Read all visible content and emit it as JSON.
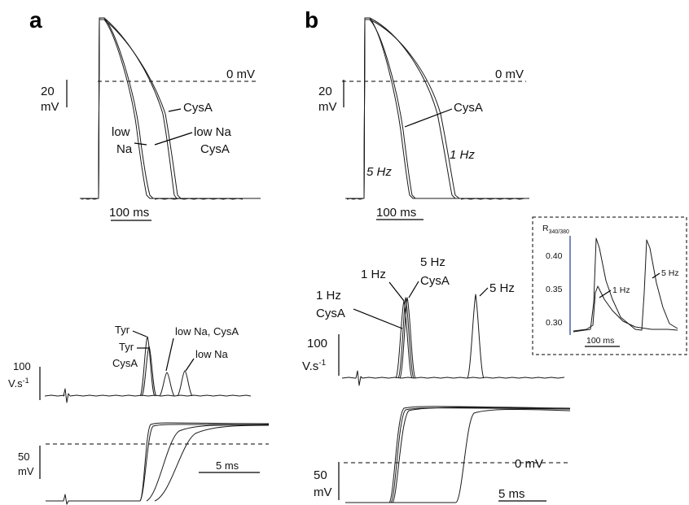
{
  "panels": {
    "a": "a",
    "b": "b"
  },
  "panel_a_ap": {
    "zero_label": "0 mV",
    "scale_v": [
      "20",
      "mV"
    ],
    "scale_t": "100 ms",
    "labels": {
      "cysa": "CysA",
      "low_na_1": "low",
      "low_na_2": "Na",
      "low_na_cysa_1": "low Na",
      "low_na_cysa_2": "CysA"
    }
  },
  "panel_b_ap": {
    "zero_label": "0 mV",
    "scale_v": [
      "20",
      "mV"
    ],
    "scale_t": "100 ms",
    "labels": {
      "cysa": "CysA",
      "hz5": "5 Hz",
      "hz1": "1 Hz"
    }
  },
  "panel_a_dvdt": {
    "scale_v": [
      "100",
      "V.s",
      "-1"
    ],
    "labels": {
      "tyr": "Tyr",
      "tyr_cysa_1": "Tyr",
      "tyr_cysa_2": "CysA",
      "low_na_cysa": "low Na, CysA",
      "low_na": "low Na"
    }
  },
  "panel_a_up": {
    "scale_v": [
      "50",
      "mV"
    ],
    "scale_t": "5 ms"
  },
  "panel_b_dvdt": {
    "scale_v": [
      "100",
      "V.s",
      "-1"
    ],
    "labels": {
      "hz1_cysa_1": "1 Hz",
      "hz1_cysa_2": "CysA",
      "hz1": "1 Hz",
      "hz5_cysa_1": "5 Hz",
      "hz5_cysa_2": "CysA",
      "hz5": "5 Hz"
    }
  },
  "panel_b_up": {
    "zero_label": "0 mV",
    "scale_v": [
      "50",
      "mV"
    ],
    "scale_t": "5 ms"
  },
  "inset": {
    "ylabel_main": "R",
    "ylabel_sub": "340/380",
    "yticks": [
      "0.40",
      "0.35",
      "0.30"
    ],
    "scale_t": "100 ms",
    "labels": {
      "hz1": "1 Hz",
      "hz5": "5 Hz"
    }
  },
  "chart_data": [
    {
      "type": "line",
      "panel": "a",
      "trace": "action potentials",
      "series": [
        {
          "name": "Tyr",
          "apd_ms": 125
        },
        {
          "name": "low Na",
          "apd_ms": 120
        },
        {
          "name": "CysA",
          "apd_ms": 180
        },
        {
          "name": "low Na, CysA",
          "apd_ms": 190
        }
      ]
    },
    {
      "type": "line",
      "panel": "b",
      "trace": "action potentials",
      "series": [
        {
          "name": "5 Hz",
          "apd_ms": 120
        },
        {
          "name": "5 Hz, CysA",
          "apd_ms": 125
        },
        {
          "name": "1 Hz",
          "apd_ms": 215
        },
        {
          "name": "1 Hz, CysA",
          "apd_ms": 225
        }
      ]
    },
    {
      "type": "line",
      "panel": "a",
      "trace": "dV/dt max",
      "series": [
        {
          "name": "Tyr",
          "peak_v_per_s": 160
        },
        {
          "name": "Tyr, CysA",
          "peak_v_per_s": 140
        },
        {
          "name": "low Na, CysA",
          "peak_v_per_s": 60
        },
        {
          "name": "low Na",
          "peak_v_per_s": 65
        }
      ]
    },
    {
      "type": "line",
      "panel": "b",
      "trace": "dV/dt max",
      "series": [
        {
          "name": "1 Hz",
          "peak_v_per_s": 220
        },
        {
          "name": "1 Hz, CysA",
          "peak_v_per_s": 215
        },
        {
          "name": "5 Hz, CysA",
          "peak_v_per_s": 220
        },
        {
          "name": "5 Hz",
          "peak_v_per_s": 230
        }
      ]
    },
    {
      "type": "line",
      "panel": "inset",
      "trace": "R340/380",
      "yticks": [
        0.3,
        0.35,
        0.4
      ],
      "ylim": [
        0.27,
        0.43
      ],
      "series": [
        {
          "name": "1 Hz",
          "peak": 0.345
        },
        {
          "name": "5 Hz",
          "peak": 0.42
        }
      ]
    }
  ]
}
